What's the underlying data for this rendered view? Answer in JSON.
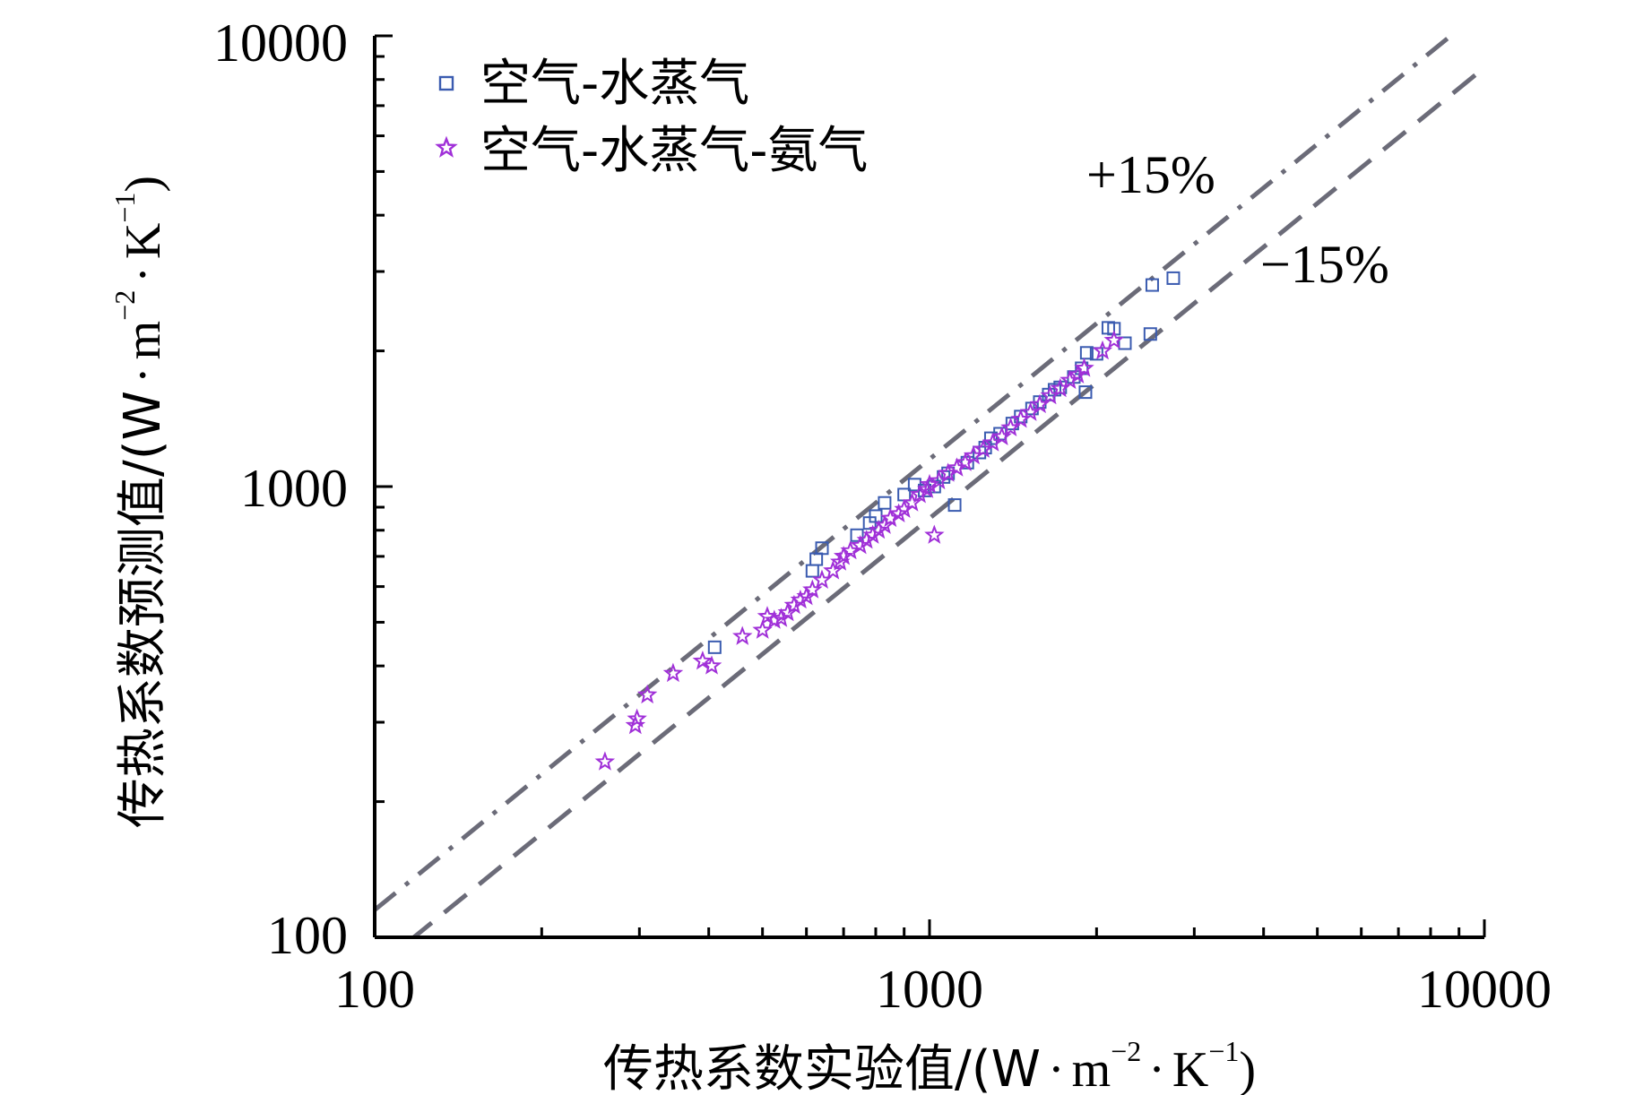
{
  "chart_data": {
    "type": "scatter",
    "x_scale": "log",
    "y_scale": "log",
    "xlim": [
      100,
      10000
    ],
    "ylim": [
      100,
      10000
    ],
    "xlabel": "传热系数实验值/(W·m⁻²·K⁻¹)",
    "ylabel": "传热系数预测值/(W·m⁻²·K⁻¹)",
    "xlabel_parts": {
      "main": "传热系数实验值/(W",
      "dot1": "·",
      "m": "m",
      "m_exp": "−2",
      "dot2": "·",
      "k": "K",
      "k_exp": "−1",
      "close": ")"
    },
    "ylabel_parts": {
      "main": "传热系数预测值/(W",
      "dot1": "·",
      "m": "m",
      "m_exp": "−2",
      "dot2": "·",
      "k": "K",
      "k_exp": "−1",
      "close": ")"
    },
    "x_ticks": [
      "100",
      "1000",
      "10000"
    ],
    "y_ticks": [
      "100",
      "1000",
      "10000"
    ],
    "grid": false,
    "legend_position": "top-left",
    "reference_lines": [
      {
        "label": "+15%",
        "factor": 1.15,
        "style": "dash-dot",
        "color": "#6b6b78"
      },
      {
        "label": "−15%",
        "factor": 0.85,
        "style": "dashed",
        "color": "#6b6b78"
      }
    ],
    "series": [
      {
        "name": "空气-水蒸气",
        "marker": "square",
        "color": "#3a5bb0",
        "points": [
          [
            410,
            440
          ],
          [
            615,
            650
          ],
          [
            625,
            690
          ],
          [
            640,
            730
          ],
          [
            740,
            780
          ],
          [
            780,
            830
          ],
          [
            800,
            860
          ],
          [
            830,
            920
          ],
          [
            900,
            960
          ],
          [
            940,
            1010
          ],
          [
            980,
            980
          ],
          [
            1020,
            1000
          ],
          [
            1060,
            1050
          ],
          [
            1080,
            1070
          ],
          [
            1110,
            910
          ],
          [
            1170,
            1130
          ],
          [
            1230,
            1190
          ],
          [
            1260,
            1220
          ],
          [
            1290,
            1280
          ],
          [
            1340,
            1310
          ],
          [
            1410,
            1380
          ],
          [
            1460,
            1430
          ],
          [
            1530,
            1490
          ],
          [
            1580,
            1540
          ],
          [
            1640,
            1600
          ],
          [
            1680,
            1640
          ],
          [
            1720,
            1660
          ],
          [
            1820,
            1750
          ],
          [
            1880,
            1830
          ],
          [
            1920,
            1980
          ],
          [
            1910,
            1620
          ],
          [
            2000,
            1970
          ],
          [
            2100,
            2250
          ],
          [
            2150,
            2240
          ],
          [
            2250,
            2080
          ],
          [
            2500,
            2180
          ],
          [
            2520,
            2800
          ],
          [
            2750,
            2900
          ]
        ]
      },
      {
        "name": "空气-水蒸气-氨气",
        "marker": "star",
        "color": "#a030d8",
        "points": [
          [
            260,
            245
          ],
          [
            295,
            295
          ],
          [
            297,
            305
          ],
          [
            310,
            345
          ],
          [
            345,
            385
          ],
          [
            390,
            410
          ],
          [
            405,
            400
          ],
          [
            460,
            465
          ],
          [
            500,
            480
          ],
          [
            510,
            515
          ],
          [
            525,
            505
          ],
          [
            540,
            510
          ],
          [
            555,
            525
          ],
          [
            570,
            545
          ],
          [
            585,
            560
          ],
          [
            600,
            570
          ],
          [
            615,
            590
          ],
          [
            640,
            620
          ],
          [
            670,
            650
          ],
          [
            690,
            680
          ],
          [
            700,
            700
          ],
          [
            720,
            720
          ],
          [
            750,
            740
          ],
          [
            770,
            760
          ],
          [
            790,
            780
          ],
          [
            810,
            800
          ],
          [
            830,
            820
          ],
          [
            850,
            850
          ],
          [
            880,
            870
          ],
          [
            900,
            890
          ],
          [
            930,
            920
          ],
          [
            960,
            960
          ],
          [
            990,
            985
          ],
          [
            1000,
            1010
          ],
          [
            1020,
            780
          ],
          [
            1040,
            1030
          ],
          [
            1080,
            1070
          ],
          [
            1120,
            1100
          ],
          [
            1160,
            1130
          ],
          [
            1200,
            1170
          ],
          [
            1250,
            1210
          ],
          [
            1300,
            1250
          ],
          [
            1350,
            1290
          ],
          [
            1400,
            1350
          ],
          [
            1460,
            1410
          ],
          [
            1520,
            1460
          ],
          [
            1580,
            1520
          ],
          [
            1650,
            1590
          ],
          [
            1720,
            1650
          ],
          [
            1790,
            1720
          ],
          [
            1850,
            1770
          ],
          [
            1900,
            1830
          ],
          [
            2050,
            2000
          ],
          [
            2150,
            2110
          ]
        ]
      }
    ]
  }
}
